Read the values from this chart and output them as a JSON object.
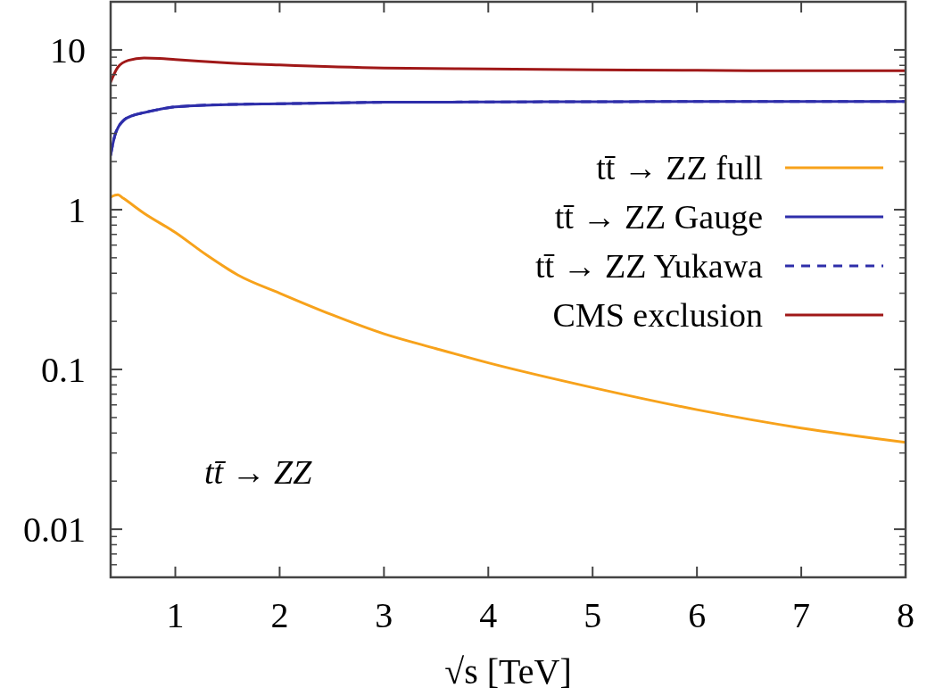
{
  "chart_data": {
    "type": "line",
    "xlabel": "√s [TeV]",
    "log": "y",
    "grid": false,
    "legend": "right",
    "marker": "none",
    "xlim": [
      0.38,
      8
    ],
    "xticks": [
      1,
      2,
      3,
      4,
      5,
      6,
      7,
      8
    ],
    "ylim": [
      0.005,
      20
    ],
    "yticks": [
      0.01,
      0.1,
      1,
      10
    ],
    "annotations": [
      "tt̄ → ZZ"
    ],
    "series": [
      {
        "name": "tt̄ → ZZ full",
        "color": "#f7a21b",
        "line_style": "solid",
        "x": [
          0.38,
          0.45,
          0.5,
          0.7,
          1,
          1.3,
          1.6,
          2,
          2.5,
          3,
          3.5,
          4,
          5,
          6,
          7,
          8
        ],
        "values": [
          1.2,
          1.24,
          1.18,
          0.95,
          0.72,
          0.52,
          0.39,
          0.3,
          0.22,
          0.167,
          0.135,
          0.11,
          0.077,
          0.056,
          0.043,
          0.035
        ]
      },
      {
        "name": "tt̄ → ZZ Gauge",
        "color": "#2e2eaa",
        "line_style": "solid",
        "x": [
          0.38,
          0.42,
          0.5,
          0.6,
          0.7,
          0.85,
          1,
          1.5,
          2,
          3,
          4,
          5,
          6,
          7,
          8
        ],
        "values": [
          2.2,
          2.9,
          3.6,
          3.9,
          4.05,
          4.25,
          4.4,
          4.55,
          4.6,
          4.7,
          4.72,
          4.74,
          4.75,
          4.75,
          4.75
        ]
      },
      {
        "name": "tt̄ → ZZ Yukawa",
        "color": "#2e2eaa",
        "line_style": "dashed",
        "x": [
          0.38,
          0.42,
          0.5,
          0.6,
          0.7,
          0.85,
          1,
          1.5,
          2,
          3,
          4,
          5,
          6,
          7,
          8
        ],
        "values": [
          2.2,
          2.9,
          3.6,
          3.9,
          4.05,
          4.25,
          4.4,
          4.55,
          4.6,
          4.7,
          4.72,
          4.74,
          4.75,
          4.75,
          4.75
        ]
      },
      {
        "name": "CMS exclusion",
        "color": "#a01818",
        "line_style": "solid",
        "x": [
          0.38,
          0.45,
          0.55,
          0.7,
          0.85,
          1,
          1.5,
          2,
          3,
          4,
          5,
          6,
          7,
          8
        ],
        "values": [
          6.3,
          7.8,
          8.6,
          8.9,
          8.85,
          8.7,
          8.3,
          8.05,
          7.7,
          7.6,
          7.5,
          7.45,
          7.4,
          7.4
        ]
      }
    ]
  }
}
